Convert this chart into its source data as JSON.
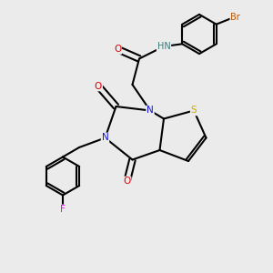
{
  "bg_color": "#ebebeb",
  "atom_colors": {
    "C": "#000000",
    "N": "#1010dd",
    "O": "#dd0000",
    "S": "#ccaa00",
    "H": "#3a7a7a",
    "Br": "#bb5500",
    "F": "#ee00ee"
  },
  "bond_color": "#000000"
}
